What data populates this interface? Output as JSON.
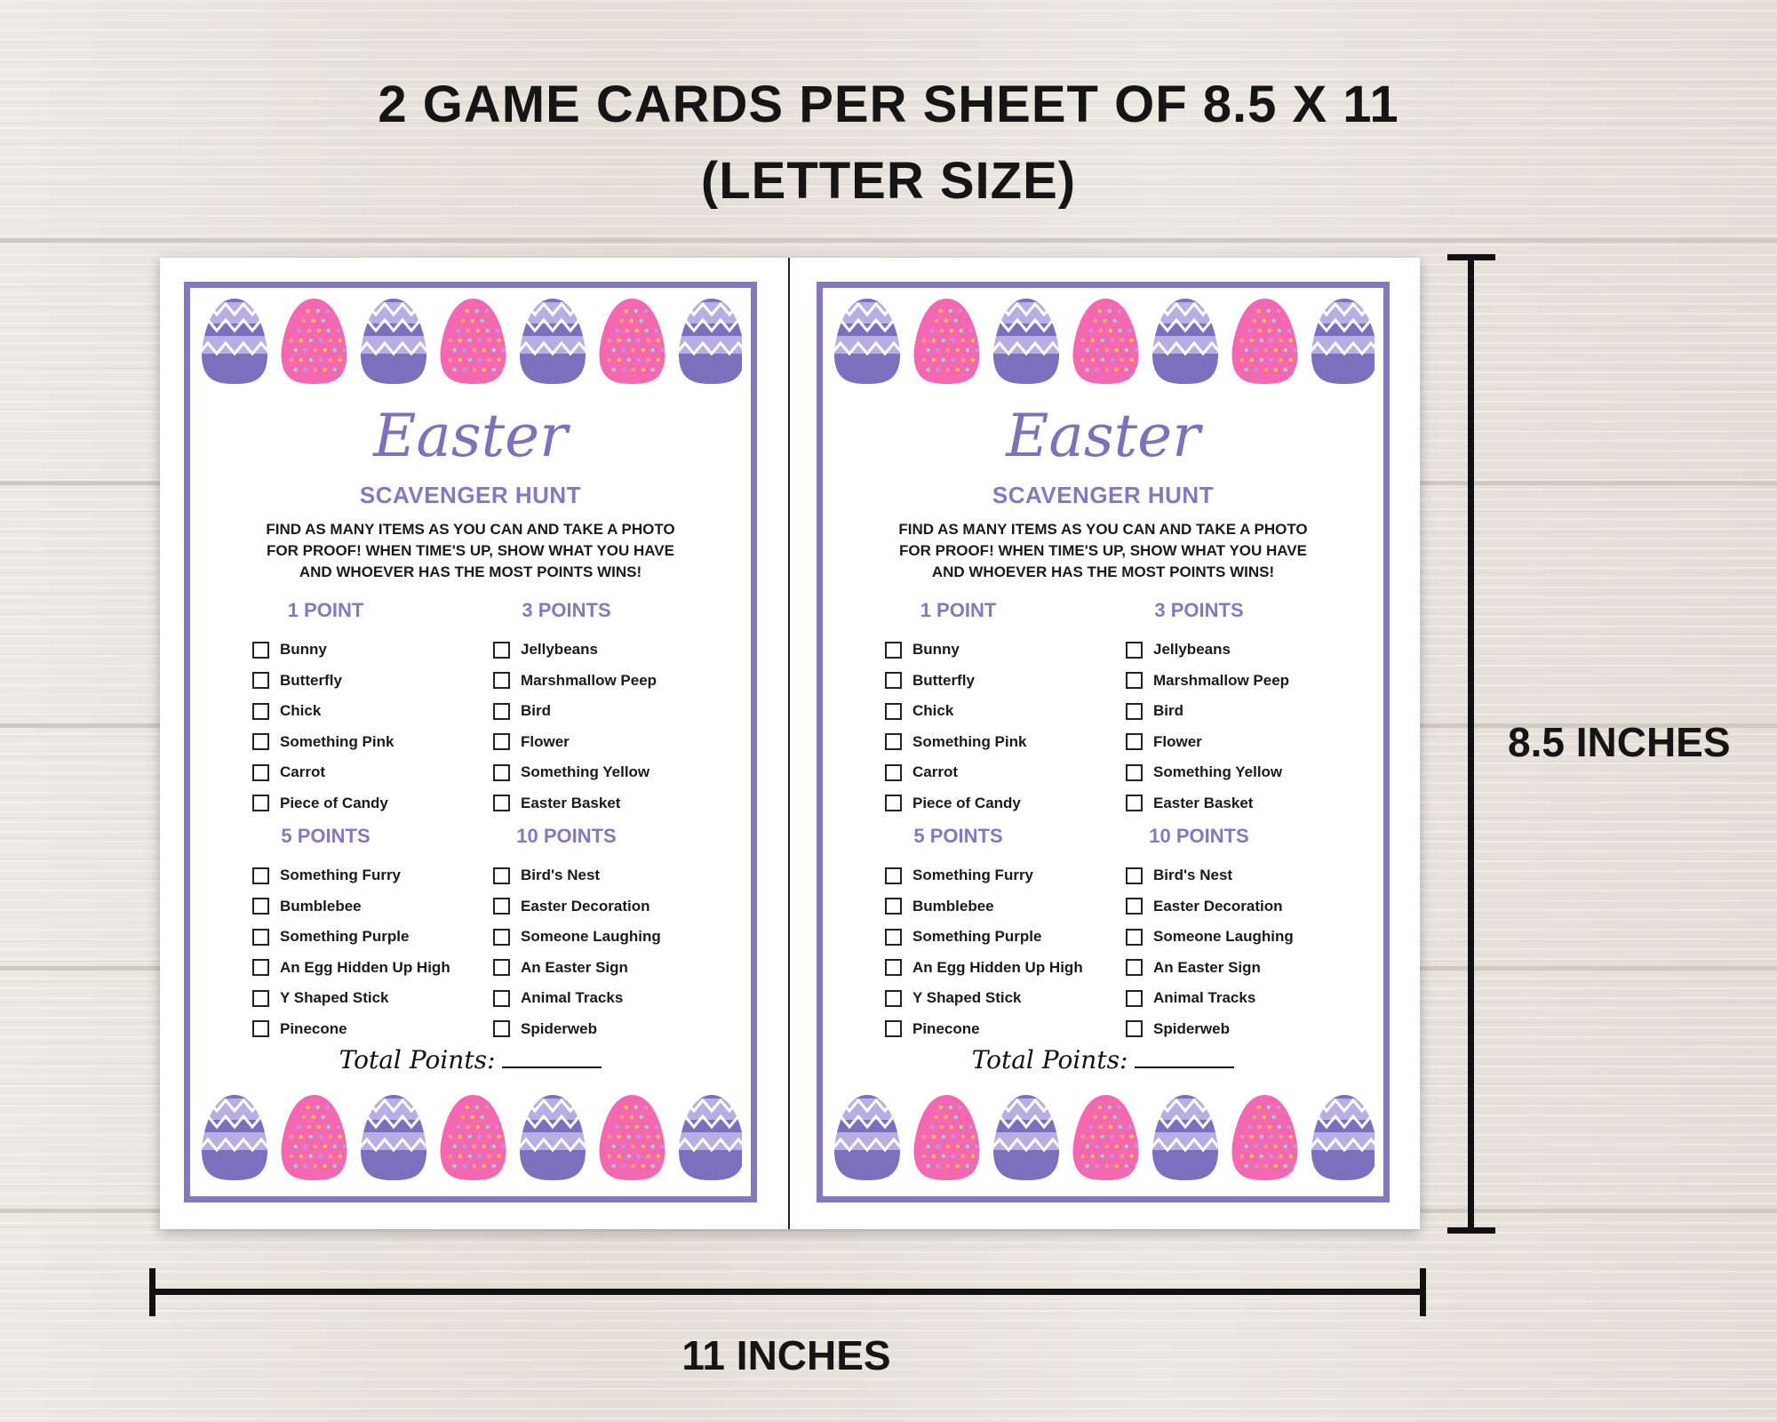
{
  "headline": {
    "line1": "2 GAME CARDS PER SHEET OF 8.5 X 11",
    "line2": "(LETTER SIZE)"
  },
  "dimensions": {
    "height_label": "8.5 INCHES",
    "width_label": "11 INCHES"
  },
  "colors": {
    "accent": "#8677c0",
    "egg_purple_light": "#b9aee3",
    "egg_purple_dark": "#7c6fbd",
    "egg_pink": "#f468b1"
  },
  "egg_pattern": [
    "purple-zigzag-egg-icon",
    "pink-dotted-egg-icon",
    "purple-zigzag-egg-icon",
    "pink-dotted-egg-icon",
    "purple-zigzag-egg-icon",
    "pink-dotted-egg-icon",
    "purple-zigzag-egg-icon"
  ],
  "card": {
    "title": "Easter",
    "subtitle": "SCAVENGER HUNT",
    "instructions": [
      "FIND AS MANY ITEMS AS YOU CAN AND TAKE A PHOTO",
      "FOR PROOF! WHEN TIME'S UP, SHOW WHAT YOU HAVE",
      "AND WHOEVER HAS THE MOST POINTS WINS!"
    ],
    "sections": [
      {
        "heading": "1 POINT",
        "items": [
          "Bunny",
          "Butterfly",
          "Chick",
          "Something Pink",
          "Carrot",
          "Piece of Candy"
        ]
      },
      {
        "heading": "3 POINTS",
        "items": [
          "Jellybeans",
          "Marshmallow Peep",
          "Bird",
          "Flower",
          "Something Yellow",
          "Easter Basket"
        ]
      },
      {
        "heading": "5 POINTS",
        "items": [
          "Something Furry",
          "Bumblebee",
          "Something Purple",
          "An Egg Hidden Up High",
          "Y Shaped Stick",
          "Pinecone"
        ]
      },
      {
        "heading": "10 POINTS",
        "items": [
          "Bird's Nest",
          "Easter Decoration",
          "Someone Laughing",
          "An Easter Sign",
          "Animal Tracks",
          "Spiderweb"
        ]
      }
    ],
    "total_label": "Total Points:"
  }
}
